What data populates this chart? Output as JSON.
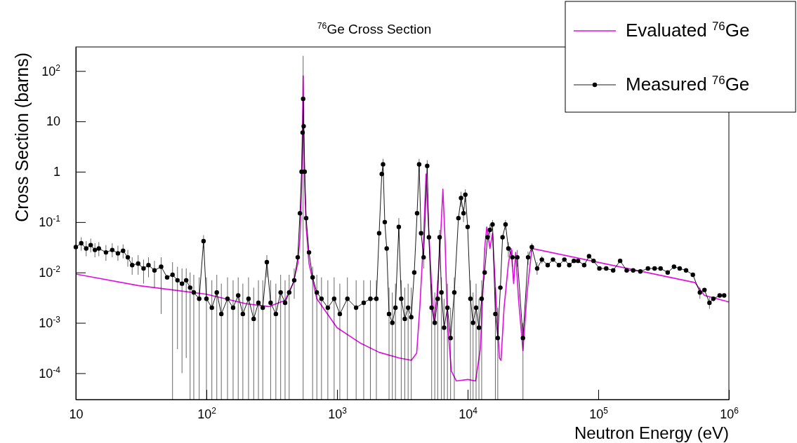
{
  "chart_data": {
    "type": "line",
    "title": "$^{76}$Ge Cross Section",
    "xlabel": "Neutron Energy (eV)",
    "ylabel": "Cross Section (barns)",
    "log": "xy",
    "grid": false,
    "legend": "top right",
    "xlim": [
      10,
      1000000
    ],
    "ylim": [
      3e-05,
      300
    ],
    "xticks": [
      10,
      {
        "value": 100,
        "label": "10$^{2}$"
      },
      {
        "value": 1000,
        "label": "10$^{3}$"
      },
      {
        "value": 10000,
        "label": "10$^{4}$"
      },
      {
        "value": 100000,
        "label": "10$^{5}$"
      },
      {
        "value": 1000000,
        "label": "10$^{6}$"
      }
    ],
    "yticks": [
      {
        "value": 0.0001,
        "label": "10$^{-4}$"
      },
      {
        "value": 0.001,
        "label": "10$^{-3}$"
      },
      {
        "value": 0.01,
        "label": "10$^{-2}$"
      },
      {
        "value": 0.1,
        "label": "10$^{-1}$"
      },
      1,
      10,
      {
        "value": 100,
        "label": "10$^{2}$"
      }
    ],
    "series": [
      {
        "name": "Evaluated $^{76}$Ge",
        "color": "#e010e0",
        "marker": "none",
        "x": [
          10,
          30,
          100,
          200,
          300,
          400,
          460,
          500,
          520,
          535,
          545,
          550,
          555,
          565,
          580,
          610,
          700,
          1000,
          1500,
          2100,
          3000,
          3700,
          4070,
          4300,
          4600,
          4800,
          5000,
          5300,
          5500,
          5800,
          6200,
          6460,
          6700,
          7000,
          7500,
          8200,
          10000,
          11500,
          12500,
          13000,
          13500,
          14000,
          14800,
          15500,
          16300,
          17500,
          18000,
          19000,
          20500,
          21500,
          22500,
          23300,
          24500,
          26500,
          28500,
          31000,
          550000,
          650000,
          1000000
        ],
        "values": [
          0.0093,
          0.0055,
          0.0037,
          0.0024,
          0.0021,
          0.0028,
          0.006,
          0.015,
          0.05,
          0.5,
          10,
          80,
          10,
          0.6,
          0.08,
          0.015,
          0.003,
          0.0008,
          0.0004,
          0.00026,
          0.0002,
          0.00018,
          0.00025,
          0.002,
          0.05,
          0.9,
          0.1,
          0.005,
          0.0011,
          0.003,
          0.05,
          0.45,
          0.05,
          0.0011,
          0.00011,
          7e-05,
          7.5e-05,
          7e-05,
          0.0003,
          0.003,
          0.03,
          0.08,
          0.03,
          0.06,
          0.005,
          0.0002,
          0.00018,
          0.002,
          0.015,
          0.03,
          0.006,
          0.025,
          0.003,
          0.00028,
          0.004,
          0.03,
          0.0063,
          0.0035,
          0.0026
        ]
      },
      {
        "name": "Measured $^{76}$Ge",
        "color": "#000000",
        "marker": "circle",
        "x": [
          10,
          11,
          12,
          13,
          14,
          15,
          17,
          19,
          21,
          23,
          25,
          27,
          30,
          33,
          36,
          40,
          45,
          50,
          55,
          60,
          65,
          70,
          75,
          80,
          88,
          95,
          100,
          110,
          120,
          130,
          145,
          160,
          175,
          190,
          210,
          230,
          250,
          270,
          290,
          310,
          340,
          370,
          400,
          430,
          470,
          500,
          520,
          535,
          545,
          550,
          555,
          565,
          580,
          610,
          650,
          700,
          760,
          850,
          950,
          1050,
          1200,
          1400,
          1600,
          1800,
          2000,
          2100,
          2200,
          2250,
          2320,
          2400,
          2500,
          2650,
          2800,
          2970,
          3100,
          3300,
          3500,
          3700,
          3900,
          4100,
          4250,
          4400,
          4600,
          4900,
          5050,
          5300,
          5600,
          5900,
          6100,
          6300,
          6600,
          7000,
          7400,
          7900,
          8500,
          8900,
          9300,
          9600,
          10000,
          10500,
          11000,
          11600,
          12200,
          12800,
          13500,
          14200,
          14800,
          15500,
          16300,
          17000,
          17800,
          18500,
          19500,
          20500,
          22000,
          24000,
          26500,
          29000,
          31000,
          34000,
          37000,
          41000,
          45000,
          50000,
          55000,
          60000,
          65000,
          70000,
          78000,
          85000,
          92000,
          102000,
          115000,
          130000,
          147000,
          165000,
          185000,
          210000,
          240000,
          270000,
          300000,
          340000,
          380000,
          420000,
          470000,
          530000,
          600000,
          650000,
          710000,
          760000,
          850000,
          920000
        ],
        "values": [
          0.032,
          0.038,
          0.03,
          0.035,
          0.028,
          0.03,
          0.025,
          0.028,
          0.024,
          0.027,
          0.02,
          0.014,
          0.015,
          0.012,
          0.014,
          0.011,
          0.013,
          0.008,
          0.009,
          0.007,
          0.006,
          0.007,
          0.005,
          0.004,
          0.003,
          0.042,
          0.003,
          0.002,
          0.004,
          0.0015,
          0.003,
          0.002,
          0.0035,
          0.0015,
          0.003,
          0.0012,
          0.0025,
          0.002,
          0.016,
          0.0025,
          0.0015,
          0.004,
          0.0025,
          0.004,
          0.007,
          0.02,
          0.15,
          1,
          6,
          28,
          8,
          1,
          0.12,
          0.025,
          0.008,
          0.004,
          0.003,
          0.002,
          0.003,
          0.0015,
          0.003,
          0.002,
          0.0025,
          0.003,
          0.003,
          0.06,
          0.9,
          1.4,
          0.1,
          0.03,
          0.0015,
          0.001,
          0.002,
          0.08,
          0.003,
          0.0012,
          0.002,
          0.0013,
          0.01,
          0.15,
          1.4,
          0.06,
          0.02,
          1.3,
          0.05,
          0.002,
          0.001,
          0.003,
          0.05,
          0.004,
          0.0008,
          0.002,
          0.0005,
          0.004,
          0.12,
          0.3,
          0.15,
          0.35,
          0.08,
          0.003,
          0.001,
          0.002,
          0.0008,
          0.003,
          0.01,
          0.05,
          0.07,
          0.09,
          0.0015,
          0.0005,
          0.005,
          0.05,
          0.09,
          0.03,
          0.02,
          0.02,
          0.0005,
          0.02,
          0.032,
          0.012,
          0.018,
          0.014,
          0.018,
          0.014,
          0.018,
          0.014,
          0.017,
          0.017,
          0.014,
          0.021,
          0.017,
          0.012,
          0.012,
          0.011,
          0.017,
          0.011,
          0.011,
          0.0105,
          0.012,
          0.012,
          0.012,
          0.01,
          0.013,
          0.012,
          0.011,
          0.009,
          0.004,
          0.0045,
          0.0025,
          0.003,
          0.0035,
          0.0035
        ],
        "errors": [
          [
            0.022,
            0.045
          ],
          [
            0.027,
            0.05
          ],
          [
            0.021,
            0.042
          ],
          [
            0.025,
            0.047
          ],
          [
            0.02,
            0.038
          ],
          [
            0.021,
            0.04
          ],
          [
            0.017,
            0.035
          ],
          [
            0.02,
            0.038
          ],
          [
            0.017,
            0.034
          ],
          [
            0.019,
            0.036
          ],
          [
            0.013,
            0.028
          ],
          [
            0.009,
            0.02
          ],
          [
            0.009,
            0.022
          ],
          [
            0.006,
            0.018
          ],
          [
            0.008,
            0.02
          ],
          [
            0.005,
            0.017
          ],
          [
            0.0015,
            0.02
          ],
          null,
          [
            3e-05,
            0.016
          ],
          [
            0.0003,
            0.013
          ],
          [
            0.0001,
            0.012
          ],
          [
            0.0002,
            0.012
          ],
          [
            3e-05,
            0.01
          ],
          [
            3e-05,
            0.009
          ],
          [
            3e-05,
            0.008
          ],
          [
            0.03,
            0.055
          ],
          [
            3e-05,
            0.008
          ],
          [
            3e-05,
            0.007
          ],
          [
            3e-05,
            0.009
          ],
          [
            3e-05,
            0.006
          ],
          [
            3e-05,
            0.008
          ],
          [
            3e-05,
            0.007
          ],
          [
            3e-05,
            0.008
          ],
          [
            3e-05,
            0.006
          ],
          [
            3e-05,
            0.008
          ],
          [
            3e-05,
            0.005
          ],
          [
            3e-05,
            0.007
          ],
          [
            3e-05,
            0.007
          ],
          [
            0.008,
            0.022
          ],
          [
            3e-05,
            0.007
          ],
          [
            3e-05,
            0.006
          ],
          [
            3e-05,
            0.009
          ],
          [
            3e-05,
            0.007
          ],
          [
            3e-05,
            0.009
          ],
          [
            0.003,
            0.012
          ],
          null,
          null,
          null,
          null,
          [
            3e-05,
            200
          ],
          null,
          null,
          null,
          null,
          [
            3e-05,
            0.013
          ],
          [
            3e-05,
            0.009
          ],
          [
            3e-05,
            0.008
          ],
          [
            3e-05,
            0.007
          ],
          [
            3e-05,
            0.008
          ],
          [
            3e-05,
            0.006
          ],
          [
            3e-05,
            0.008
          ],
          [
            3e-05,
            0.007
          ],
          [
            3e-05,
            0.007
          ],
          [
            3e-05,
            0.007
          ],
          [
            3e-05,
            0.007
          ],
          null,
          null,
          [
            1,
            1.8
          ],
          null,
          null,
          [
            3e-05,
            0.005
          ],
          [
            3e-05,
            0.004
          ],
          [
            3e-05,
            0.006
          ],
          [
            0.05,
            0.12
          ],
          [
            3e-05,
            0.007
          ],
          [
            3e-05,
            0.005
          ],
          [
            3e-05,
            0.006
          ],
          [
            3e-05,
            0.005
          ],
          null,
          null,
          [
            1,
            1.8
          ],
          null,
          [
            0.012,
            0.03
          ],
          [
            0.9,
            1.7
          ],
          null,
          [
            3e-05,
            0.006
          ],
          [
            3e-05,
            0.004
          ],
          [
            3e-05,
            0.007
          ],
          [
            0.03,
            0.07
          ],
          [
            3e-05,
            0.008
          ],
          [
            3e-05,
            0.003
          ],
          [
            3e-05,
            0.006
          ],
          [
            3e-05,
            0.002
          ],
          [
            3e-05,
            0.008
          ],
          null,
          [
            0.2,
            0.4
          ],
          [
            0.1,
            0.2
          ],
          [
            0.25,
            0.45
          ],
          null,
          [
            3e-05,
            0.007
          ],
          [
            3e-05,
            0.004
          ],
          [
            3e-05,
            0.006
          ],
          [
            3e-05,
            0.003
          ],
          [
            3e-05,
            0.007
          ],
          null,
          null,
          [
            0.05,
            0.09
          ],
          [
            0.07,
            0.11
          ],
          [
            3e-05,
            0.005
          ],
          [
            3e-05,
            0.002
          ],
          null,
          null,
          [
            0.07,
            0.11
          ],
          [
            0.02,
            0.04
          ],
          [
            0.013,
            0.028
          ],
          [
            0.013,
            0.028
          ],
          [
            3e-05,
            0.001
          ],
          [
            0.014,
            0.026
          ],
          [
            0.026,
            0.038
          ],
          [
            0.009,
            0.016
          ],
          [
            0.015,
            0.021
          ],
          null,
          null,
          null,
          null,
          null,
          null,
          null,
          null,
          null,
          null,
          null,
          null,
          null,
          null,
          null,
          null,
          null,
          null,
          null,
          null,
          null,
          null,
          null,
          null,
          null,
          [
            0.003,
            0.005
          ],
          null,
          [
            0.0019,
            0.0032
          ],
          null,
          null,
          null
        ]
      }
    ]
  }
}
